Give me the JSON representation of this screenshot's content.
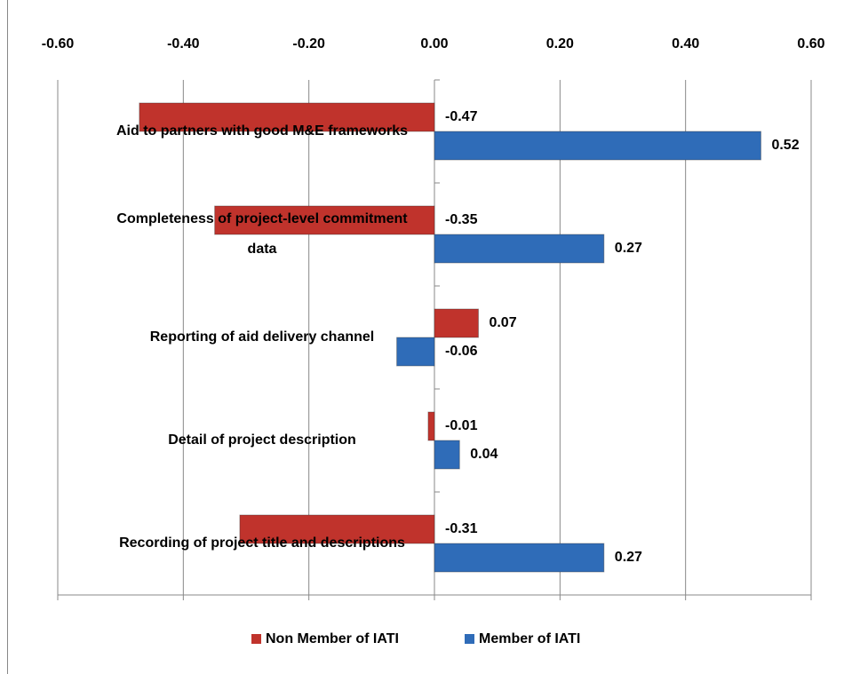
{
  "chart_data": {
    "type": "hbar",
    "categories": [
      "Aid to partners with good M&E frameworks",
      "Completeness of project-level commitment data",
      "Reporting of aid delivery channel",
      "Detail of project description",
      "Recording of project title and descriptions"
    ],
    "series": [
      {
        "name": "Non Member of IATI",
        "color": "#c0332c",
        "values": [
          -0.47,
          -0.35,
          0.07,
          -0.01,
          -0.31
        ]
      },
      {
        "name": "Member of IATI",
        "color": "#2f6cb8",
        "values": [
          0.52,
          0.27,
          -0.06,
          0.04,
          0.27
        ]
      }
    ],
    "xlim": [
      -0.6,
      0.6
    ],
    "xticks": [
      {
        "value": -0.6,
        "label": "-0.60"
      },
      {
        "value": -0.4,
        "label": "-0.40"
      },
      {
        "value": -0.2,
        "label": "-0.20"
      },
      {
        "value": 0,
        "label": "0.00"
      },
      {
        "value": 0.2,
        "label": "0.20"
      },
      {
        "value": 0.4,
        "label": "0.40"
      },
      {
        "value": 0.6,
        "label": "0.60"
      }
    ],
    "grid": true,
    "legend": "bottom"
  }
}
